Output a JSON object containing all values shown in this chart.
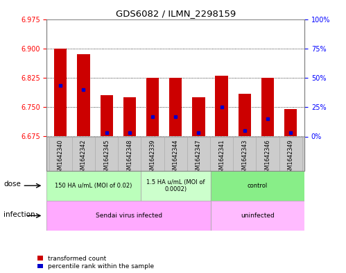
{
  "title": "GDS6082 / ILMN_2298159",
  "samples": [
    "GSM1642340",
    "GSM1642342",
    "GSM1642345",
    "GSM1642348",
    "GSM1642339",
    "GSM1642344",
    "GSM1642347",
    "GSM1642341",
    "GSM1642343",
    "GSM1642346",
    "GSM1642349"
  ],
  "bar_values": [
    6.9,
    6.885,
    6.78,
    6.775,
    6.825,
    6.825,
    6.775,
    6.83,
    6.785,
    6.825,
    6.745
  ],
  "bar_base": 6.675,
  "blue_marker_values": [
    6.805,
    6.795,
    6.685,
    6.685,
    6.725,
    6.725,
    6.685,
    6.75,
    6.69,
    6.72,
    6.685
  ],
  "ylim_left": [
    6.675,
    6.975
  ],
  "yticks_left": [
    6.675,
    6.75,
    6.825,
    6.9,
    6.975
  ],
  "yticks_right": [
    0,
    25,
    50,
    75,
    100
  ],
  "ylim_right": [
    0,
    100
  ],
  "bar_color": "#cc0000",
  "blue_color": "#0000cc",
  "dose_groups": [
    {
      "label": "150 HA u/mL (MOI of 0.02)",
      "start": 0,
      "end": 4,
      "color": "#bbffbb"
    },
    {
      "label": "1.5 HA u/mL (MOI of\n0.0002)",
      "start": 4,
      "end": 7,
      "color": "#ccffcc"
    },
    {
      "label": "control",
      "start": 7,
      "end": 11,
      "color": "#88ee88"
    }
  ],
  "infection_groups": [
    {
      "label": "Sendai virus infected",
      "start": 0,
      "end": 7,
      "color": "#ffaaff"
    },
    {
      "label": "uninfected",
      "start": 7,
      "end": 11,
      "color": "#ffbbff"
    }
  ],
  "dose_label": "dose",
  "infection_label": "infection",
  "legend_items": [
    "transformed count",
    "percentile rank within the sample"
  ],
  "sample_band_color": "#cccccc",
  "outer_border_color": "#aaaaaa"
}
